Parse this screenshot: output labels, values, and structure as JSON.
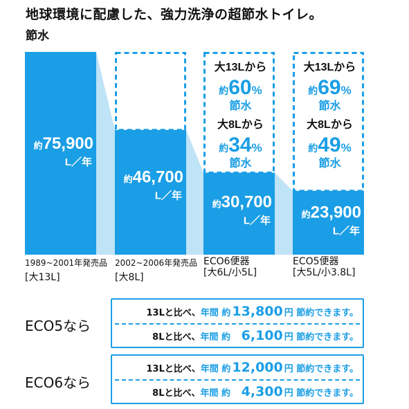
{
  "header": {
    "title": "地球環境に配慮した、強力洗浄の超節水トイレ。",
    "subtitle": "節水"
  },
  "chart_data": {
    "type": "bar",
    "title": "地球環境に配慮した、強力洗浄の超節水トイレ。",
    "ylabel": "節水",
    "unit": "L／年",
    "categories": [
      {
        "line1": "1989~2001年発売品",
        "line2": "[大13L]"
      },
      {
        "line1": "2002~2006年発売品",
        "line2": "[大8L]"
      },
      {
        "line1": "ECO6便器",
        "line2": "[大6L/小5L]"
      },
      {
        "line1": "ECO5便器",
        "line2": "[大5L/小3.8L]"
      }
    ],
    "values": [
      75900,
      46700,
      30700,
      23900
    ],
    "value_labels": [
      {
        "prefix": "約",
        "number": "75,900",
        "unit": "L／年"
      },
      {
        "prefix": "約",
        "number": "46,700",
        "unit": "L／年"
      },
      {
        "prefix": "約",
        "number": "30,700",
        "unit": "L／年"
      },
      {
        "prefix": "約",
        "number": "23,900",
        "unit": "L／年"
      }
    ],
    "ylim": [
      0,
      75900
    ],
    "bar_color": "#1a9ee5",
    "connector_color": "#bfe3f7",
    "savings": [
      {
        "bar": 2,
        "items": [
          {
            "line1": "大13Lから",
            "prefix": "約",
            "percent": "60",
            "pct_sign": "%",
            "tail": "節水"
          },
          {
            "line1": "大8Lから",
            "prefix": "約",
            "percent": "34",
            "pct_sign": "%",
            "tail": "節水"
          }
        ]
      },
      {
        "bar": 3,
        "items": [
          {
            "line1": "大13Lから",
            "prefix": "約",
            "percent": "69",
            "pct_sign": "%",
            "tail": "節水"
          },
          {
            "line1": "大8Lから",
            "prefix": "約",
            "percent": "49",
            "pct_sign": "%",
            "tail": "節水"
          }
        ]
      }
    ]
  },
  "comparisons": [
    {
      "label": "ECO5なら",
      "rows": [
        {
          "base": "13Lと比べ、",
          "period": "年間",
          "about": "約",
          "amount": "13,800",
          "currency": "円",
          "tail": "節約できます。"
        },
        {
          "base": "8Lと比べ、",
          "period": "年間",
          "about": "約",
          "amount": "6,100",
          "currency": "円",
          "tail": "節約できます。"
        }
      ]
    },
    {
      "label": "ECO6なら",
      "rows": [
        {
          "base": "13Lと比べ、",
          "period": "年間",
          "about": "約",
          "amount": "12,000",
          "currency": "円",
          "tail": "節約できます。"
        },
        {
          "base": "8Lと比べ、",
          "period": "年間",
          "about": "約",
          "amount": "4,300",
          "currency": "円",
          "tail": "節約できます。"
        }
      ]
    }
  ]
}
